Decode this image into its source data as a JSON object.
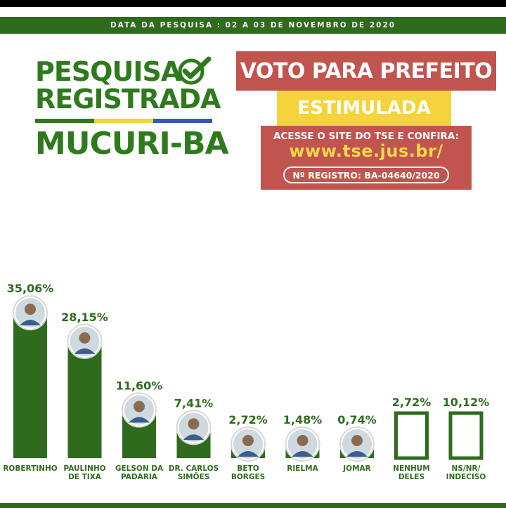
{
  "header": {
    "date_text": "DATA DA PESQUISA : 02 A 03 DE NOVEMBRO DE 2020"
  },
  "logo": {
    "line1": "PESQUISA",
    "line2": "REGISTRADA",
    "city": "MUCURI-BA",
    "check_icon": "check-circle-icon",
    "stripe_colors": [
      "#2e7a1c",
      "#f5d33c",
      "#2f5ea8"
    ]
  },
  "info": {
    "title": "VOTO PARA PREFEITO",
    "subtitle": "ESTIMULADA",
    "tse_text": "ACESSE O SITE DO TSE E CONFIRA:",
    "tse_url": "www.tse.jus.br/",
    "registro": "Nº REGISTRO: BA-04640/2020"
  },
  "colors": {
    "green": "#2f6b1d",
    "red": "#c1544f",
    "yellow": "#f5d33c"
  },
  "chart_data": {
    "type": "bar",
    "categories": [
      "ROBERTINHO",
      "PAULINHO DE TIXA",
      "GELSON DA PADARIA",
      "DR. CARLOS SIMÕES",
      "BETO BORGES",
      "RIELMA",
      "JOMAR",
      "NENHUM DELES",
      "NS/NR/ INDECISO"
    ],
    "label_lines": [
      [
        "ROBERTINHO"
      ],
      [
        "PAULINHO",
        "DE TIXA"
      ],
      [
        "GELSON DA",
        "PADARIA"
      ],
      [
        "DR. CARLOS",
        "SIMÕES"
      ],
      [
        "BETO",
        "BORGES"
      ],
      [
        "RIELMA"
      ],
      [
        "JOMAR"
      ],
      [
        "NENHUM",
        "DELES"
      ],
      [
        "NS/NR/",
        "INDECISO"
      ]
    ],
    "values": [
      35.06,
      28.15,
      11.6,
      7.41,
      2.72,
      1.48,
      0.74,
      2.72,
      10.12
    ],
    "value_labels": [
      "35,06%",
      "28,15%",
      "11,60%",
      "7,41%",
      "2,72%",
      "1,48%",
      "0,74%",
      "2,72%",
      "10,12%"
    ],
    "bar_style": [
      "filled",
      "filled",
      "filled",
      "filled",
      "filled",
      "filled",
      "filled",
      "outline",
      "outline"
    ],
    "has_photo": [
      true,
      true,
      true,
      true,
      true,
      true,
      true,
      false,
      false
    ],
    "photo_icon": "candidate-photo-icon",
    "ylim": [
      0,
      40
    ],
    "grid": false,
    "legend": "none"
  }
}
